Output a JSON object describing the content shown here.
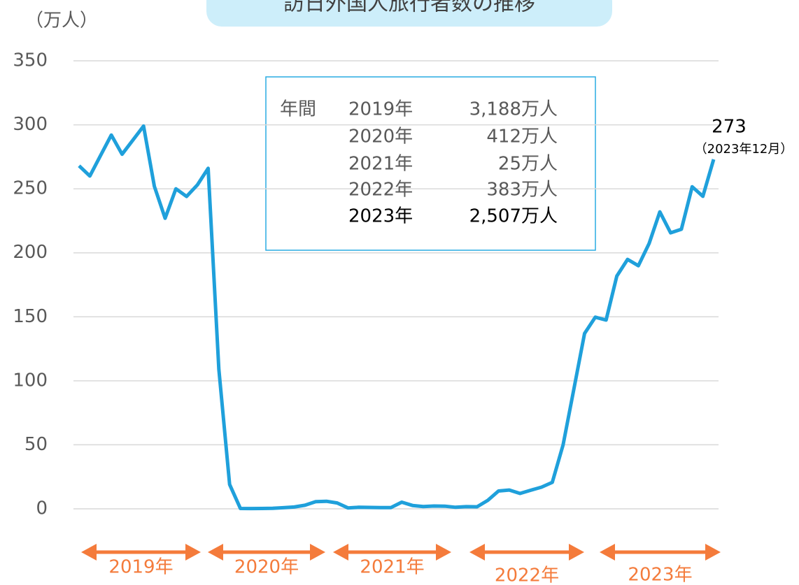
{
  "chart_data": {
    "type": "line",
    "title": "訪日外国人旅行者数の推移",
    "y_unit": "（万人）",
    "ylim": [
      -20,
      350
    ],
    "yticks": [
      0,
      50,
      100,
      150,
      200,
      250,
      300,
      350
    ],
    "grid": true,
    "series": [
      {
        "name": "訪日外国人旅行者数",
        "color": "#1fa0db",
        "values": [
          268,
          260,
          276,
          292,
          277,
          288,
          299,
          252,
          227,
          250,
          244,
          253,
          266,
          109,
          19,
          0.3,
          0.2,
          0.3,
          0.4,
          0.9,
          1.4,
          2.8,
          5.6,
          5.9,
          4.6,
          0.7,
          1.2,
          1.1,
          1.0,
          1.0,
          5.2,
          2.6,
          1.8,
          2.2,
          2.1,
          1.2,
          1.7,
          1.6,
          6.6,
          13.9,
          14.7,
          12.0,
          14.5,
          16.9,
          20.7,
          49.9,
          93.5,
          137.0,
          149.7,
          147.5,
          181.8,
          194.9,
          189.9,
          207.3,
          232.0,
          215.6,
          218.4,
          251.6,
          244.1,
          273
        ]
      }
    ],
    "year_labels": [
      "2019年",
      "2020年",
      "2021年",
      "2022年",
      "2023年"
    ],
    "annotation": {
      "value": "273",
      "label": "（2023年12月）"
    },
    "annual_box": {
      "heading": "年間",
      "rows": [
        [
          "2019年",
          "3,188万人"
        ],
        [
          "2020年",
          "412万人"
        ],
        [
          "2021年",
          "25万人"
        ],
        [
          "2022年",
          "383万人"
        ],
        [
          "2023年",
          "2,507万人"
        ]
      ]
    }
  }
}
